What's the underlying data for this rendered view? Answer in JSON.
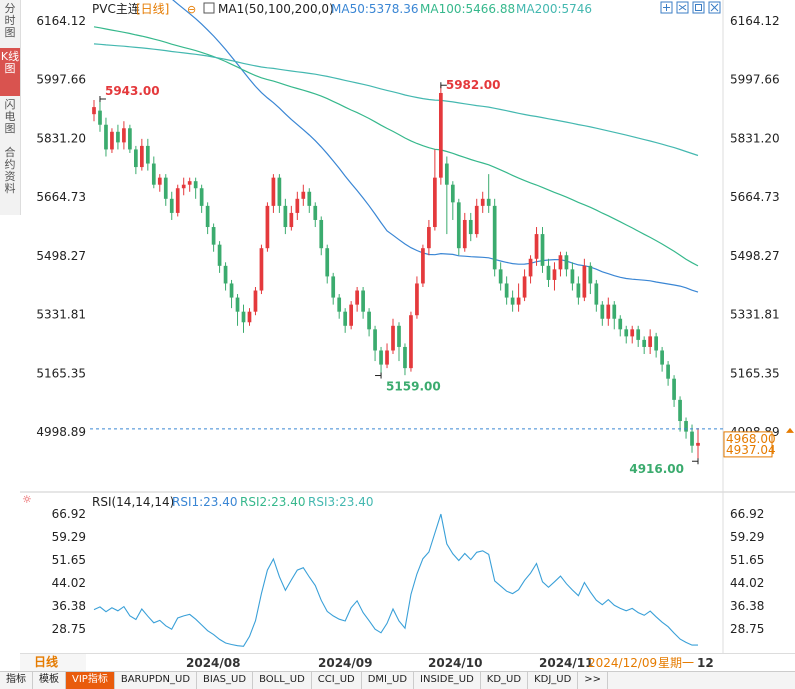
{
  "sidebar": {
    "tabs": [
      {
        "label": "分时图",
        "active": false
      },
      {
        "label": "K线图",
        "active": true
      },
      {
        "label": "闪电图",
        "active": false
      },
      {
        "label": "合约资料",
        "active": false
      }
    ]
  },
  "header": {
    "symbol": "PVC主连",
    "period": "[日线]",
    "ma_label": "MA1(50,100,200,0)",
    "ma50": "MA50:5378.36",
    "ma100": "MA100:5466.88",
    "ma200": "MA200:5746"
  },
  "rsi_header": {
    "label": "RSI(14,14,14)",
    "rsi1": "RSI1:23.40",
    "rsi2": "RSI2:23.40",
    "rsi3": "RSI3:23.40"
  },
  "bottom": {
    "period_button": "日线",
    "date_labels": [
      "2024/08",
      "2024/09",
      "2024/10",
      "2024/11"
    ],
    "current_date": "2024/12/09",
    "weekday": "星期一",
    "day": "12"
  },
  "tabs": [
    "指标",
    "模板",
    "VIP指标",
    "BARUPDN_UD",
    "BIAS_UD",
    "BOLL_UD",
    "CCI_UD",
    "DMI_UD",
    "INSIDE_UD",
    "KD_UD",
    "KDJ_UD",
    ">>"
  ],
  "colors": {
    "up": "#e4393c",
    "down": "#3bab6e",
    "ma50": "#3a86d4",
    "ma100": "#36b88c",
    "ma200": "#44b8b0",
    "rsi": "#3aa0d8",
    "accent": "#e57b00"
  },
  "chart_data": [
    {
      "type": "candlestick",
      "title": "PVC主连 [日线]",
      "ylim": [
        4860,
        6230
      ],
      "y_ticks": [
        6164.12,
        5997.66,
        5831.2,
        5664.73,
        5498.27,
        5331.81,
        5165.35,
        4998.89
      ],
      "annotations": {
        "high_label": "5982.00",
        "start_label": "5943.00",
        "mid_low_label": "5159.00",
        "low_label": "4916.00",
        "last_price_top": "4968.00",
        "last_price": "4937.04"
      },
      "last_price_value": 4968,
      "candles": [
        [
          5900,
          5920,
          5880,
          5940
        ],
        [
          5910,
          5870,
          5850,
          5943
        ],
        [
          5870,
          5800,
          5780,
          5890
        ],
        [
          5800,
          5850,
          5790,
          5860
        ],
        [
          5850,
          5820,
          5800,
          5870
        ],
        [
          5820,
          5860,
          5800,
          5880
        ],
        [
          5860,
          5800,
          5790,
          5870
        ],
        [
          5800,
          5750,
          5730,
          5810
        ],
        [
          5750,
          5810,
          5740,
          5830
        ],
        [
          5810,
          5760,
          5740,
          5830
        ],
        [
          5760,
          5700,
          5690,
          5780
        ],
        [
          5700,
          5720,
          5680,
          5730
        ],
        [
          5720,
          5660,
          5640,
          5730
        ],
        [
          5660,
          5620,
          5600,
          5680
        ],
        [
          5620,
          5690,
          5610,
          5700
        ],
        [
          5690,
          5700,
          5670,
          5720
        ],
        [
          5700,
          5710,
          5680,
          5720
        ],
        [
          5710,
          5690,
          5660,
          5720
        ],
        [
          5690,
          5640,
          5620,
          5700
        ],
        [
          5640,
          5580,
          5560,
          5650
        ],
        [
          5580,
          5530,
          5510,
          5590
        ],
        [
          5530,
          5470,
          5450,
          5540
        ],
        [
          5470,
          5420,
          5400,
          5480
        ],
        [
          5420,
          5380,
          5350,
          5430
        ],
        [
          5380,
          5340,
          5300,
          5390
        ],
        [
          5340,
          5310,
          5280,
          5360
        ],
        [
          5310,
          5340,
          5300,
          5350
        ],
        [
          5340,
          5400,
          5330,
          5410
        ],
        [
          5400,
          5520,
          5390,
          5530
        ],
        [
          5520,
          5640,
          5510,
          5650
        ],
        [
          5640,
          5720,
          5620,
          5730
        ],
        [
          5720,
          5640,
          5620,
          5730
        ],
        [
          5640,
          5580,
          5560,
          5660
        ],
        [
          5580,
          5620,
          5570,
          5640
        ],
        [
          5620,
          5660,
          5600,
          5680
        ],
        [
          5660,
          5680,
          5640,
          5700
        ],
        [
          5680,
          5640,
          5620,
          5690
        ],
        [
          5640,
          5600,
          5580,
          5650
        ],
        [
          5600,
          5520,
          5500,
          5610
        ],
        [
          5520,
          5440,
          5420,
          5530
        ],
        [
          5440,
          5380,
          5360,
          5450
        ],
        [
          5380,
          5340,
          5320,
          5390
        ],
        [
          5340,
          5300,
          5280,
          5350
        ],
        [
          5300,
          5360,
          5290,
          5370
        ],
        [
          5360,
          5400,
          5340,
          5410
        ],
        [
          5400,
          5340,
          5320,
          5410
        ],
        [
          5340,
          5290,
          5270,
          5350
        ],
        [
          5290,
          5230,
          5200,
          5300
        ],
        [
          5230,
          5190,
          5159,
          5240
        ],
        [
          5190,
          5230,
          5180,
          5250
        ],
        [
          5230,
          5300,
          5220,
          5320
        ],
        [
          5300,
          5240,
          5200,
          5310
        ],
        [
          5240,
          5180,
          5160,
          5250
        ],
        [
          5180,
          5330,
          5170,
          5340
        ],
        [
          5330,
          5420,
          5320,
          5440
        ],
        [
          5420,
          5520,
          5410,
          5530
        ],
        [
          5520,
          5580,
          5500,
          5600
        ],
        [
          5580,
          5720,
          5570,
          5800
        ],
        [
          5720,
          5960,
          5700,
          5982
        ],
        [
          5760,
          5700,
          5560,
          5780
        ],
        [
          5700,
          5650,
          5600,
          5710
        ],
        [
          5650,
          5520,
          5500,
          5660
        ],
        [
          5520,
          5600,
          5510,
          5620
        ],
        [
          5600,
          5560,
          5540,
          5620
        ],
        [
          5560,
          5640,
          5550,
          5660
        ],
        [
          5640,
          5660,
          5620,
          5680
        ],
        [
          5660,
          5640,
          5620,
          5730
        ],
        [
          5640,
          5460,
          5440,
          5660
        ],
        [
          5460,
          5420,
          5400,
          5480
        ],
        [
          5420,
          5380,
          5360,
          5440
        ],
        [
          5380,
          5360,
          5340,
          5400
        ],
        [
          5360,
          5380,
          5340,
          5420
        ],
        [
          5380,
          5440,
          5370,
          5460
        ],
        [
          5440,
          5490,
          5420,
          5500
        ],
        [
          5490,
          5560,
          5470,
          5580
        ],
        [
          5560,
          5470,
          5450,
          5580
        ],
        [
          5470,
          5430,
          5410,
          5490
        ],
        [
          5430,
          5460,
          5400,
          5480
        ],
        [
          5460,
          5500,
          5440,
          5510
        ],
        [
          5500,
          5460,
          5440,
          5510
        ],
        [
          5460,
          5420,
          5400,
          5480
        ],
        [
          5420,
          5380,
          5360,
          5440
        ],
        [
          5380,
          5470,
          5370,
          5490
        ],
        [
          5470,
          5420,
          5390,
          5480
        ],
        [
          5420,
          5360,
          5340,
          5430
        ],
        [
          5360,
          5320,
          5300,
          5370
        ],
        [
          5320,
          5360,
          5300,
          5380
        ],
        [
          5360,
          5320,
          5290,
          5370
        ],
        [
          5320,
          5290,
          5270,
          5330
        ],
        [
          5290,
          5270,
          5250,
          5300
        ],
        [
          5270,
          5290,
          5250,
          5300
        ],
        [
          5290,
          5260,
          5240,
          5300
        ],
        [
          5260,
          5240,
          5220,
          5270
        ],
        [
          5240,
          5270,
          5220,
          5290
        ],
        [
          5270,
          5230,
          5210,
          5280
        ],
        [
          5230,
          5190,
          5170,
          5240
        ],
        [
          5190,
          5150,
          5130,
          5200
        ],
        [
          5150,
          5090,
          5070,
          5160
        ],
        [
          5090,
          5030,
          5000,
          5100
        ],
        [
          5030,
          5000,
          4980,
          5040
        ],
        [
          5000,
          4960,
          4940,
          5020
        ],
        [
          4960,
          4968,
          4916,
          5010
        ]
      ]
    },
    {
      "type": "line",
      "title": "RSI(14,14,14)",
      "ylim": [
        22,
        70
      ],
      "y_ticks": [
        66.92,
        59.29,
        51.65,
        44.02,
        36.38,
        28.75
      ],
      "series": [
        {
          "name": "RSI1",
          "values": [
            35.2,
            36.1,
            34.5,
            35.8,
            34.8,
            36.2,
            33.1,
            31.9,
            35.4,
            33.0,
            30.8,
            31.6,
            29.8,
            28.7,
            32.4,
            33.1,
            33.6,
            32.0,
            30.1,
            28.2,
            26.9,
            25.3,
            24.1,
            23.6,
            23.2,
            23.0,
            26.3,
            31.5,
            40.5,
            48.3,
            52.0,
            46.1,
            41.6,
            45.0,
            48.3,
            49.1,
            46.0,
            43.2,
            38.3,
            34.6,
            33.1,
            32.0,
            31.4,
            35.8,
            38.1,
            34.2,
            31.5,
            28.7,
            27.5,
            30.6,
            35.4,
            31.4,
            29.0,
            40.3,
            47.0,
            52.1,
            54.3,
            60.6,
            66.9,
            57.0,
            53.7,
            51.5,
            53.8,
            51.8,
            54.2,
            54.7,
            53.5,
            44.7,
            43.0,
            41.3,
            40.5,
            41.8,
            44.9,
            47.3,
            50.5,
            44.4,
            42.6,
            44.4,
            46.3,
            43.8,
            41.7,
            39.8,
            44.2,
            41.0,
            38.3,
            36.8,
            38.5,
            36.6,
            35.6,
            34.8,
            35.6,
            34.2,
            33.3,
            34.7,
            32.8,
            31.0,
            29.5,
            27.4,
            25.4,
            24.3,
            23.4,
            23.4
          ]
        }
      ]
    }
  ]
}
